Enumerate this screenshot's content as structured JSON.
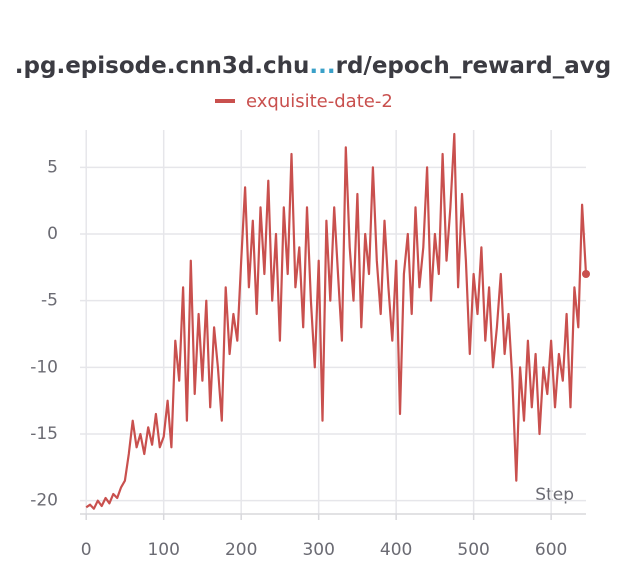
{
  "chart_data": {
    "type": "line",
    "title": [
      ".pg.episode.cnn3d.chu",
      "...",
      "rd/epoch_reward_avg"
    ],
    "x_label": "Step",
    "xlim": [
      -8,
      645
    ],
    "xticks": [
      0,
      100,
      200,
      300,
      400,
      500,
      600
    ],
    "ylim": [
      -21,
      7.8
    ],
    "yticks": [
      -20,
      -15,
      -10,
      -5,
      0,
      5
    ],
    "grid": true,
    "x": [
      0,
      5,
      10,
      15,
      20,
      25,
      30,
      35,
      40,
      45,
      50,
      55,
      60,
      65,
      70,
      75,
      80,
      85,
      90,
      95,
      100,
      105,
      110,
      115,
      120,
      125,
      130,
      135,
      140,
      145,
      150,
      155,
      160,
      165,
      170,
      175,
      180,
      185,
      190,
      195,
      200,
      205,
      210,
      215,
      220,
      225,
      230,
      235,
      240,
      245,
      250,
      255,
      260,
      265,
      270,
      275,
      280,
      285,
      290,
      295,
      300,
      305,
      310,
      315,
      320,
      325,
      330,
      335,
      340,
      345,
      350,
      355,
      360,
      365,
      370,
      375,
      380,
      385,
      390,
      395,
      400,
      405,
      410,
      415,
      420,
      425,
      430,
      435,
      440,
      445,
      450,
      455,
      460,
      465,
      470,
      475,
      480,
      485,
      490,
      495,
      500,
      505,
      510,
      515,
      520,
      525,
      530,
      535,
      540,
      545,
      550,
      555,
      560,
      565,
      570,
      575,
      580,
      585,
      590,
      595,
      600,
      605,
      610,
      615,
      620,
      625,
      630,
      635,
      640,
      645
    ],
    "series": [
      {
        "name": "exquisite-date-2",
        "color": "#c9504e",
        "values": [
          -20.5,
          -20.3,
          -20.6,
          -20,
          -20.4,
          -19.8,
          -20.2,
          -19.5,
          -19.8,
          -19,
          -18.5,
          -16.5,
          -14,
          -16,
          -15,
          -16.5,
          -14.5,
          -15.8,
          -13.5,
          -16,
          -15.2,
          -12.5,
          -16,
          -8,
          -11,
          -4,
          -14,
          -2,
          -12,
          -6,
          -11,
          -5,
          -13,
          -7,
          -10,
          -14,
          -4,
          -9,
          -6,
          -8,
          -2,
          3.5,
          -4,
          1,
          -6,
          2,
          -3,
          4,
          -5,
          0,
          -8,
          2,
          -3,
          6,
          -4,
          -1,
          -7,
          2,
          -5,
          -10,
          -2,
          -14,
          1,
          -5,
          2,
          -3,
          -8,
          6.5,
          -1,
          -5,
          3,
          -7,
          0,
          -3,
          5,
          -2,
          -6,
          1,
          -4,
          -8,
          -2,
          -13.5,
          -3,
          0,
          -6,
          2,
          -4,
          -1,
          5,
          -5,
          0,
          -3,
          6,
          -2,
          2,
          7.5,
          -4,
          3,
          -2,
          -9,
          -3,
          -6,
          -1,
          -8,
          -4,
          -10,
          -7,
          -3,
          -9,
          -6,
          -11,
          -18.5,
          -10,
          -14,
          -8,
          -13,
          -9,
          -15,
          -10,
          -12,
          -8,
          -13,
          -9,
          -11,
          -6,
          -13,
          -4,
          -7,
          2.2,
          -3
        ]
      }
    ]
  }
}
